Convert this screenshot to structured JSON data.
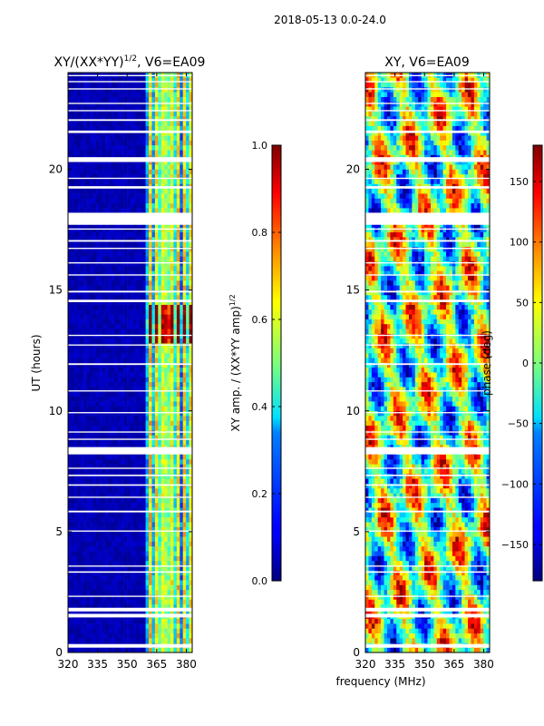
{
  "figure": {
    "suptitle": "2018-05-13 0.0-24.0",
    "xlabel": "frequency (MHz)"
  },
  "colors": {
    "jet_dark_blue": "#00007f",
    "jet_blue": "#0000ff",
    "jet_cyan": "#00ffff",
    "jet_yellow": "#ffff00",
    "jet_red": "#ff0000",
    "jet_dark_red": "#7f0000",
    "gap_white": "#ffffff"
  },
  "chart_data": [
    {
      "type": "heatmap",
      "title_prefix": "XY/(XX*YY)",
      "title_exponent": "1/2",
      "title_suffix": ", V6=EA09",
      "xlabel": "",
      "ylabel": "UT (hours)",
      "xlim": [
        320,
        383
      ],
      "ylim": [
        0,
        24
      ],
      "xticks": [
        "320",
        "335",
        "350",
        "365",
        "380"
      ],
      "xtick_values": [
        320,
        335,
        350,
        365,
        380
      ],
      "yticks": [
        "0",
        "5",
        "10",
        "15",
        "20"
      ],
      "ytick_values": [
        0,
        5,
        10,
        15,
        20
      ],
      "value_note": "amplitude ratio mostly near 0 below ~360 MHz; 0.2-0.9 in 360-383 MHz band",
      "colorbar": {
        "label_prefix": "XY amp. / (XX*YY amp)",
        "label_exponent": "1/2",
        "range": [
          0.0,
          1.0
        ],
        "ticks": [
          "0.0",
          "0.2",
          "0.4",
          "0.6",
          "0.8",
          "1.0"
        ],
        "tick_values": [
          0.0,
          0.2,
          0.4,
          0.6,
          0.8,
          1.0
        ]
      }
    },
    {
      "type": "heatmap",
      "title": "XY, V6=EA09",
      "xlabel": "",
      "ylabel": "",
      "xlim": [
        320,
        383
      ],
      "ylim": [
        0,
        24
      ],
      "xticks": [
        "320",
        "335",
        "350",
        "365",
        "380"
      ],
      "xtick_values": [
        320,
        335,
        350,
        365,
        380
      ],
      "yticks": [
        "0",
        "5",
        "10",
        "15",
        "20"
      ],
      "ytick_values": [
        0,
        5,
        10,
        15,
        20
      ],
      "value_note": "phase in degrees spanning -180 to 180, highly variable",
      "colorbar": {
        "label": "phase (deg)",
        "range": [
          -180,
          180
        ],
        "ticks": [
          "−150",
          "−100",
          "−50",
          "0",
          "50",
          "100",
          "150"
        ],
        "tick_values": [
          -150,
          -100,
          -50,
          0,
          50,
          100,
          150
        ]
      }
    }
  ],
  "data_gaps_hours": [
    [
      0.2,
      0.35
    ],
    [
      1.45,
      1.6
    ],
    [
      1.7,
      1.85
    ],
    [
      2.3,
      2.35
    ],
    [
      3.3,
      3.36
    ],
    [
      3.55,
      3.6
    ],
    [
      5.0,
      5.05
    ],
    [
      5.8,
      5.87
    ],
    [
      6.4,
      6.45
    ],
    [
      6.9,
      6.96
    ],
    [
      7.3,
      7.36
    ],
    [
      7.6,
      7.65
    ],
    [
      8.2,
      8.5
    ],
    [
      8.8,
      8.85
    ],
    [
      9.1,
      9.15
    ],
    [
      9.9,
      9.95
    ],
    [
      10.8,
      10.85
    ],
    [
      11.9,
      11.97
    ],
    [
      12.7,
      12.75
    ],
    [
      13.1,
      13.15
    ],
    [
      14.5,
      14.6
    ],
    [
      14.9,
      14.97
    ],
    [
      15.6,
      15.65
    ],
    [
      16.1,
      16.15
    ],
    [
      16.7,
      16.75
    ],
    [
      17.0,
      17.07
    ],
    [
      17.5,
      17.55
    ],
    [
      17.7,
      18.2
    ],
    [
      19.2,
      19.3
    ],
    [
      19.6,
      19.65
    ],
    [
      20.3,
      20.5
    ],
    [
      21.5,
      21.6
    ],
    [
      22.0,
      22.07
    ],
    [
      22.4,
      22.45
    ],
    [
      22.7,
      22.75
    ],
    [
      23.3,
      23.35
    ],
    [
      23.6,
      23.65
    ],
    [
      23.85,
      23.9
    ]
  ]
}
